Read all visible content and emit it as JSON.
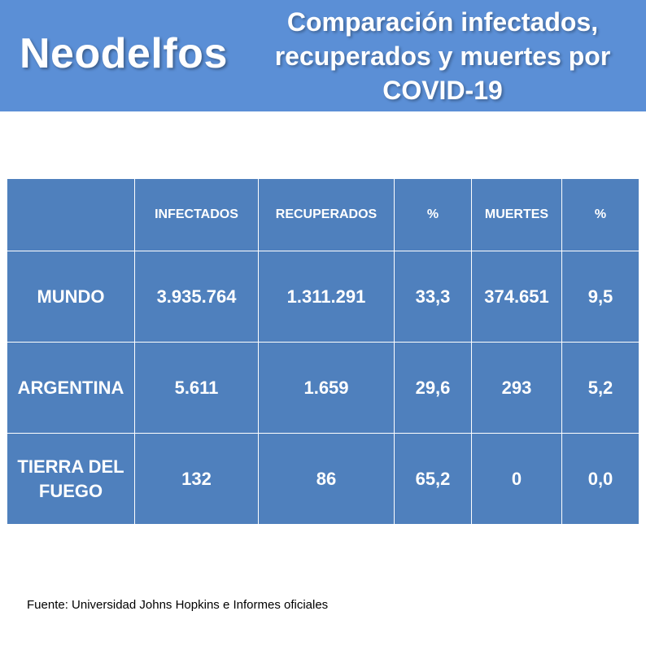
{
  "header": {
    "brand": "Neodelfos",
    "title_lines": [
      "Comparación infectados,",
      "recuperados y muertes por",
      "COVID-19"
    ]
  },
  "colors": {
    "header_bg": "#5b8fd6",
    "table_bg": "#4f80bd",
    "text": "#ffffff"
  },
  "chart_data": {
    "type": "table",
    "title": "Comparación infectados, recuperados y muertes por COVID-19",
    "columns": [
      "",
      "INFECTADOS",
      "RECUPERADOS",
      "%",
      "MUERTES",
      "%"
    ],
    "rows": [
      [
        "MUNDO",
        "3.935.764",
        "1.311.291",
        "33,3",
        "374.651",
        "9,5"
      ],
      [
        "ARGENTINA",
        "5.611",
        "1.659",
        "29,6",
        "293",
        "5,2"
      ],
      [
        "TIERRA DEL FUEGO",
        "132",
        "86",
        "65,2",
        "0",
        "0,0"
      ]
    ]
  },
  "footer": {
    "source": "Fuente: Universidad Johns Hopkins e Informes oficiales"
  }
}
